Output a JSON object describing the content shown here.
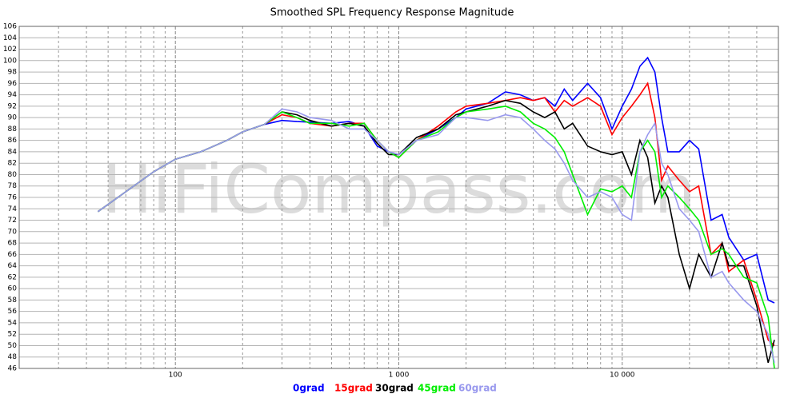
{
  "chart_data": {
    "type": "line",
    "title": "Smoothed SPL Frequency Response Magnitude",
    "watermark": "HiFiCompass.com",
    "x": [
      45,
      60,
      80,
      100,
      130,
      170,
      200,
      250,
      300,
      350,
      400,
      500,
      600,
      700,
      800,
      900,
      1000,
      1200,
      1500,
      1800,
      2000,
      2500,
      3000,
      3500,
      4000,
      4500,
      5000,
      5500,
      6000,
      7000,
      8000,
      9000,
      10000,
      11000,
      12000,
      13000,
      14000,
      15000,
      16000,
      18000,
      20000,
      22000,
      25000,
      28000,
      30000,
      35000,
      40000,
      45000,
      48000
    ],
    "series": [
      {
        "name": "0grad",
        "color": "#0000ff",
        "values": [
          73.5,
          77,
          80.5,
          82.7,
          84,
          86,
          87.5,
          88.8,
          89.5,
          89.3,
          89.2,
          89,
          89.3,
          88.5,
          85,
          84,
          83.5,
          86,
          88,
          90,
          91.5,
          92.5,
          94.5,
          94,
          93,
          93.5,
          92,
          95,
          93,
          96,
          93.5,
          88,
          92,
          95,
          99,
          100.5,
          98,
          90,
          84,
          84,
          86,
          84.5,
          72,
          73,
          69,
          65,
          66,
          58,
          57.5
        ]
      },
      {
        "name": "15grad",
        "color": "#ff0000",
        "values": [
          73.5,
          77,
          80.5,
          82.7,
          84,
          86,
          87.5,
          88.8,
          90.5,
          90,
          89,
          88.5,
          89,
          89,
          86,
          84,
          83,
          86,
          88.5,
          91,
          92,
          92.5,
          93,
          93.5,
          93,
          93.5,
          91,
          93,
          92,
          93.5,
          92,
          87,
          90,
          92,
          94,
          96,
          90,
          79,
          81.5,
          79,
          77,
          78,
          66,
          68,
          63,
          65,
          58,
          51,
          50
        ]
      },
      {
        "name": "30grad",
        "color": "#000000",
        "values": [
          73.5,
          77,
          80.5,
          82.7,
          84,
          86,
          87.5,
          88.8,
          91,
          90.5,
          89.5,
          88.5,
          89,
          88.5,
          85.5,
          83.5,
          83.5,
          86.5,
          88,
          90.5,
          91,
          92,
          93,
          92.5,
          91,
          90,
          91,
          88,
          89,
          85,
          84,
          83.5,
          84,
          80,
          86,
          83,
          75,
          78,
          76,
          66,
          60,
          66,
          62,
          68,
          64,
          64,
          57,
          47,
          51
        ]
      },
      {
        "name": "45grad",
        "color": "#00ee00",
        "values": [
          73.5,
          77,
          80.5,
          82.7,
          84,
          86,
          87.5,
          88.8,
          91,
          90,
          89,
          89,
          88.5,
          89,
          86,
          84,
          83,
          86,
          87.5,
          90,
          91,
          91.5,
          92,
          91,
          89,
          88,
          86.5,
          84,
          80,
          73,
          77.5,
          77,
          78,
          76,
          84,
          86,
          84,
          76,
          78,
          76,
          74,
          72,
          66,
          67,
          66,
          62,
          61,
          55,
          46
        ]
      },
      {
        "name": "60grad",
        "color": "#9999ee",
        "values": [
          73.5,
          77,
          80.5,
          82.7,
          84,
          86,
          87.5,
          88.8,
          91.5,
          91,
          90,
          89.5,
          88,
          88,
          86,
          84,
          83.5,
          86,
          87,
          90,
          90,
          89.5,
          90.5,
          90,
          88,
          86,
          84.5,
          82,
          79,
          76,
          77,
          76,
          73,
          72,
          84,
          87,
          89,
          82,
          80,
          74,
          72,
          70,
          62,
          63,
          61,
          58,
          56,
          52,
          47
        ]
      }
    ],
    "xlim": [
      20,
      50000
    ],
    "xlog": true,
    "xticks": [
      {
        "value": 100,
        "label": "100"
      },
      {
        "value": 1000,
        "label": "1 000"
      },
      {
        "value": 10000,
        "label": "10 000"
      }
    ],
    "xgrid_minor": [
      20,
      30,
      40,
      50,
      60,
      70,
      80,
      90,
      200,
      300,
      400,
      500,
      600,
      700,
      800,
      900,
      2000,
      3000,
      4000,
      5000,
      6000,
      7000,
      8000,
      9000,
      20000,
      30000,
      40000
    ],
    "ylim": [
      46,
      106
    ],
    "yticks": [
      46,
      48,
      50,
      52,
      54,
      56,
      58,
      60,
      62,
      64,
      66,
      68,
      70,
      72,
      74,
      76,
      78,
      80,
      82,
      84,
      86,
      88,
      90,
      92,
      94,
      96,
      98,
      100,
      102,
      104,
      106
    ],
    "grid": true
  }
}
